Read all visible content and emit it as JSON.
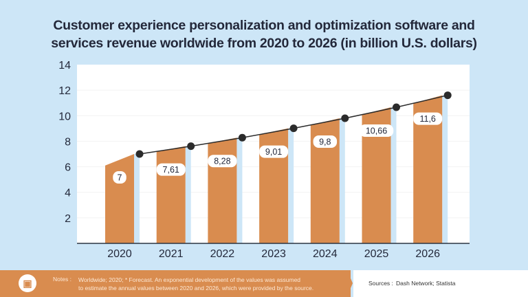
{
  "chart_data": {
    "type": "bar",
    "title": "Customer experience personalization and optimization software and services revenue worldwide from 2020 to 2026 (in billion U.S. dollars)",
    "title_lines": [
      "Customer experience personalization and optimization software and",
      "services revenue worldwide from 2020 to 2026 (in billion U.S. dollars)"
    ],
    "categories": [
      "2020",
      "2021",
      "2022",
      "2023",
      "2024",
      "2025",
      "2026"
    ],
    "values": [
      7,
      7.61,
      8.28,
      9.01,
      9.8,
      10.66,
      11.6
    ],
    "data_labels": [
      "7",
      "7,61",
      "8,28",
      "9,01",
      "9,8",
      "10,66",
      "11,6"
    ],
    "ylim": [
      0,
      14
    ],
    "yticks": [
      2,
      4,
      6,
      8,
      10,
      12,
      14
    ],
    "xlabel": "",
    "ylabel": "",
    "grid": true,
    "overlay_line": true,
    "colors": {
      "bar": "#d98c4f",
      "bar_shadow": "#cde6f7",
      "line": "#2b2b2b",
      "background": "#cde6f7",
      "plot": "#ffffff"
    }
  },
  "footer": {
    "notes_label": "Notes :",
    "notes_lines": [
      "Worldwide; 2020; * Forecast. An exponential development of the values was assumed",
      "to estimate the annual values between 2020 and 2026, which were provided by the source."
    ],
    "sources_label": "Sources :",
    "sources_text": "Dash Network; Statista",
    "logo_icon": "statista-logo"
  }
}
